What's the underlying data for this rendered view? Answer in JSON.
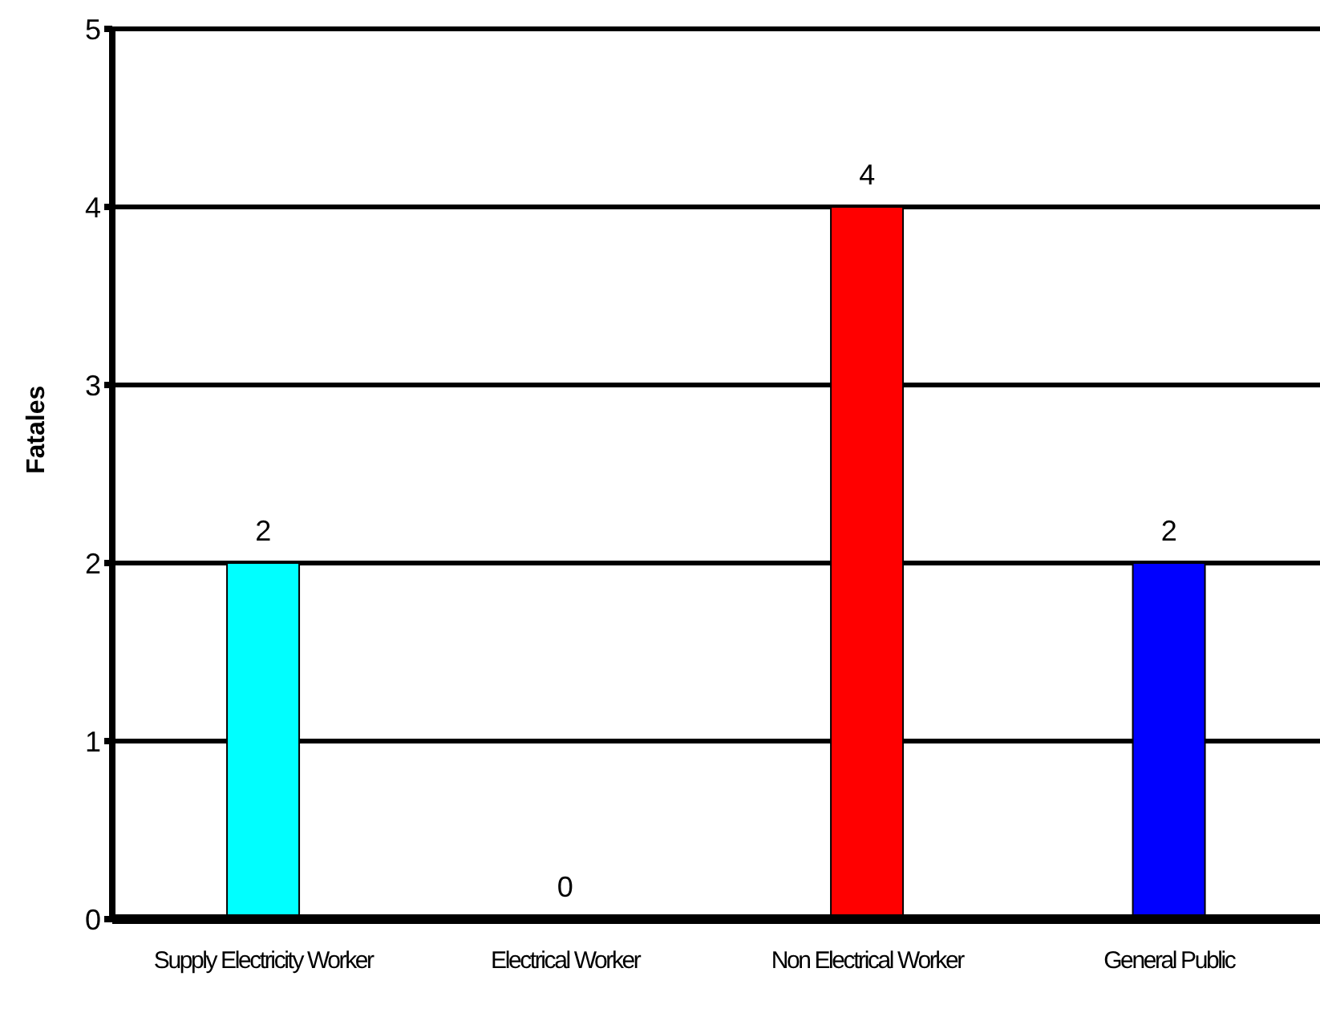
{
  "chart_data": {
    "type": "bar",
    "ylabel": "Fatales",
    "categories": [
      "Supply Electricity Worker",
      "Electrical Worker",
      "Non Electrical Worker",
      "General Public"
    ],
    "values": [
      2,
      0,
      4,
      2
    ],
    "colors": [
      "#00ffff",
      "#ffff00",
      "#ff0000",
      "#0000ff"
    ],
    "ylim": [
      0,
      5
    ],
    "yticks": [
      0,
      1,
      2,
      3,
      4,
      5
    ],
    "grid": "y",
    "data_labels": true
  }
}
